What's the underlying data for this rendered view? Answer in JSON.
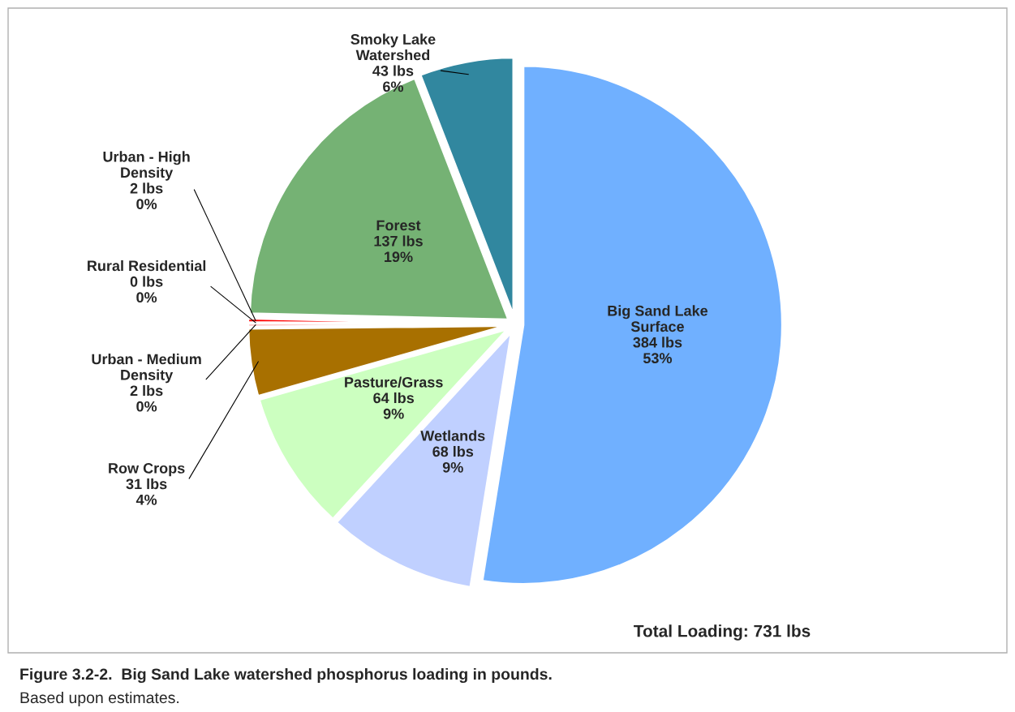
{
  "chart_data": {
    "type": "pie",
    "categories": [
      "Big Sand Lake\nSurface",
      "Wetlands",
      "Pasture/Grass",
      "Row Crops",
      "Urban - Medium\nDensity",
      "Rural Residential",
      "Urban - High\nDensity",
      "Forest",
      "Smoky Lake\nWatershed"
    ],
    "values": [
      384,
      68,
      64,
      31,
      2,
      0,
      2,
      137,
      43
    ],
    "value_labels": [
      "384 lbs\n53%",
      "68 lbs\n9%",
      "64 lbs\n9%",
      "31 lbs\n4%",
      "2 lbs\n0%",
      "0 lbs\n0%",
      "2 lbs\n0%",
      "137 lbs\n19%",
      "43 lbs\n6%"
    ],
    "colors": [
      "#70b0ff",
      "#c0d0ff",
      "#ccffc0",
      "#a87000",
      "#ffc8c8",
      "#f0f0f0",
      "#ff0000",
      "#75b274",
      "#31879f"
    ],
    "annotations": [
      "Total Loading: 731 lbs",
      "Figure 3.2-2.  Big Sand Lake watershed phosphorus loading in pounds.",
      "Based upon estimates."
    ]
  }
}
